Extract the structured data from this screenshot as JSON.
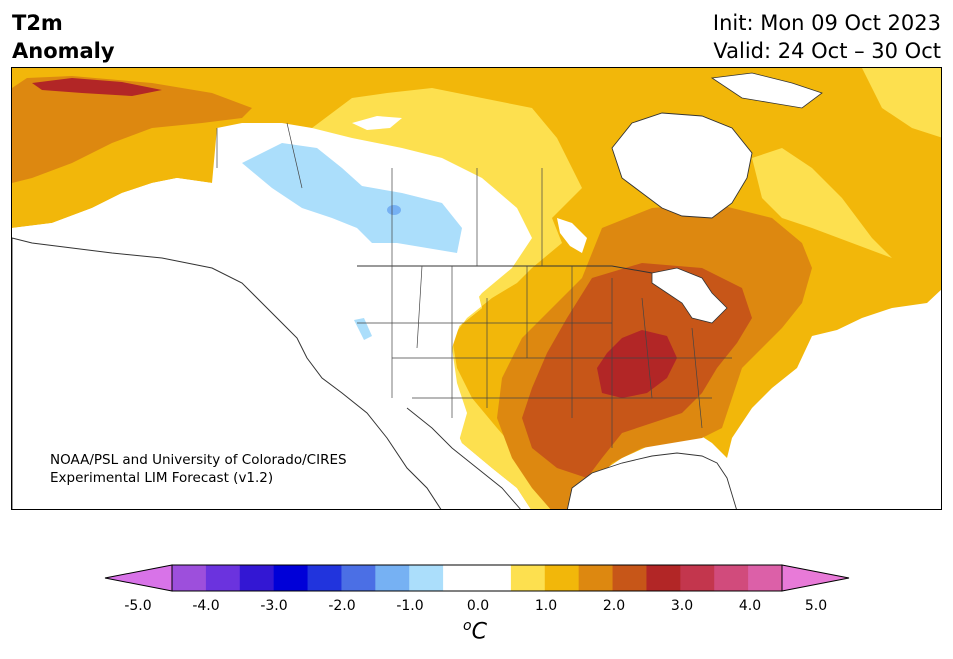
{
  "title": {
    "line1": "T2m",
    "line2": "Anomaly"
  },
  "dates": {
    "init": "Init: Mon 09 Oct 2023",
    "valid": "Valid: 24 Oct – 30 Oct"
  },
  "credit": {
    "line1": "NOAA/PSL and University of Colorado/CIRES",
    "line2": "Experimental LIM Forecast (v1.2)"
  },
  "colorbar": {
    "unit_base": "C",
    "unit_sup": "o",
    "tick_labels": [
      "-5.0",
      "-4.0",
      "-3.0",
      "-2.0",
      "-1.0",
      "0.0",
      "1.0",
      "2.0",
      "3.0",
      "4.0",
      "5.0"
    ],
    "colors": [
      "#d873e8",
      "#9d4fdc",
      "#6b33de",
      "#3317d3",
      "#0000d8",
      "#2134dd",
      "#4b6fe5",
      "#76b1f3",
      "#abdefb",
      "#ffffff",
      "#ffffff",
      "#fde04f",
      "#f2b70a",
      "#dd8810",
      "#c75618",
      "#b22626",
      "#c3364d",
      "#d14b7c",
      "#dc60a8",
      "#e87ad8"
    ]
  },
  "legend_colors": {
    "light_blue": "#abdefb",
    "blue": "#76b1f3",
    "yellow": "#fde04f",
    "gold": "#f2b70a",
    "orange": "#dd8810",
    "dark_orange": "#c75618",
    "red": "#b22626"
  }
}
